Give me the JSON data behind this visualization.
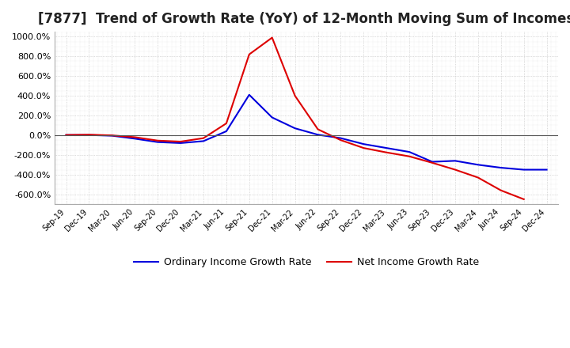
{
  "title": "[7877]  Trend of Growth Rate (YoY) of 12-Month Moving Sum of Incomes",
  "title_fontsize": 12,
  "ylim": [
    -700,
    1050
  ],
  "yticks": [
    -600,
    -400,
    -200,
    0,
    200,
    400,
    600,
    800,
    1000
  ],
  "background_color": "#ffffff",
  "plot_bg_color": "#ffffff",
  "grid_color": "#aaaaaa",
  "legend_labels": [
    "Ordinary Income Growth Rate",
    "Net Income Growth Rate"
  ],
  "legend_colors": [
    "#0000dd",
    "#dd0000"
  ],
  "dates": [
    "Sep-19",
    "Dec-19",
    "Mar-20",
    "Jun-20",
    "Sep-20",
    "Dec-20",
    "Mar-21",
    "Jun-21",
    "Sep-21",
    "Dec-21",
    "Mar-22",
    "Jun-22",
    "Sep-22",
    "Dec-22",
    "Mar-23",
    "Jun-23",
    "Sep-23",
    "Dec-23",
    "Mar-24",
    "Jun-24",
    "Sep-24",
    "Dec-24"
  ],
  "ordinary_income": [
    2,
    2,
    -5,
    -35,
    -70,
    -80,
    -60,
    40,
    410,
    180,
    70,
    5,
    -30,
    -90,
    -130,
    -170,
    -270,
    -260,
    -300,
    -330,
    -350,
    -350
  ],
  "net_income": [
    2,
    5,
    -2,
    -20,
    -55,
    -65,
    -30,
    120,
    820,
    990,
    400,
    60,
    -50,
    -130,
    -175,
    -215,
    -280,
    -350,
    -430,
    -560,
    -650,
    null
  ]
}
